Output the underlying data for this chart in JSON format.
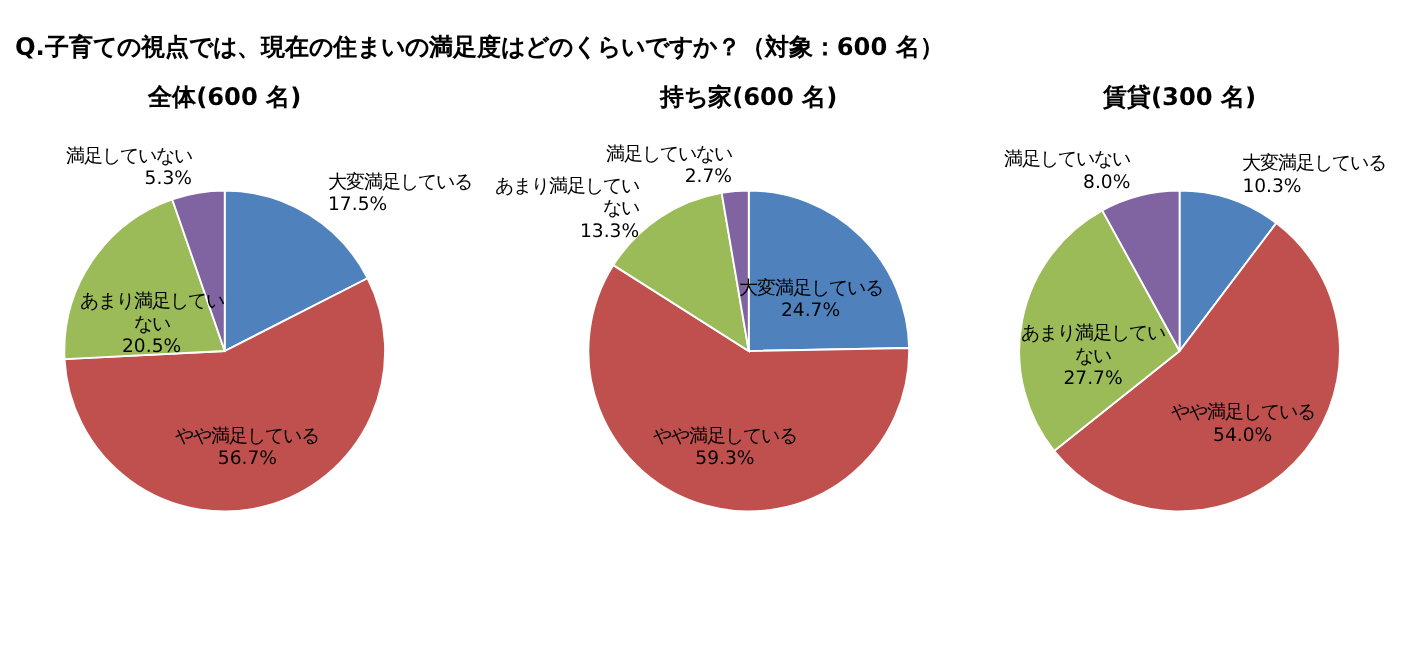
{
  "chart_data": [
    {
      "type": "pie",
      "title": "全体(600 名)",
      "categories": [
        "大変満足している",
        "やや満足している",
        "あまり満足していない",
        "満足していない"
      ],
      "values": [
        17.5,
        56.7,
        20.5,
        5.3
      ],
      "value_labels": [
        "17.5%",
        "56.7%",
        "20.5%",
        "5.3%"
      ],
      "colors": [
        "#4f81bd",
        "#c0504d",
        "#9bbb59",
        "#8064a2"
      ],
      "legend": false,
      "annotations": [
        "Q.子育ての視点では、現在の住まいの満足度はどのくらいですか？（対象：600 名）"
      ]
    },
    {
      "type": "pie",
      "title": "持ち家(600 名)",
      "categories": [
        "大変満足している",
        "やや満足している",
        "あまり満足していない",
        "満足していない"
      ],
      "values": [
        24.7,
        59.3,
        13.3,
        2.7
      ],
      "value_labels": [
        "24.7%",
        "59.3%",
        "13.3%",
        "2.7%"
      ],
      "colors": [
        "#4f81bd",
        "#c0504d",
        "#9bbb59",
        "#8064a2"
      ],
      "legend": false
    },
    {
      "type": "pie",
      "title": "賃貸(300 名)",
      "categories": [
        "大変満足している",
        "やや満足している",
        "あまり満足していない",
        "満足していない"
      ],
      "values": [
        10.3,
        54.0,
        27.7,
        8.0
      ],
      "value_labels": [
        "10.3%",
        "54.0%",
        "27.7%",
        "8.0%"
      ],
      "colors": [
        "#4f81bd",
        "#c0504d",
        "#9bbb59",
        "#8064a2"
      ],
      "legend": false
    }
  ]
}
